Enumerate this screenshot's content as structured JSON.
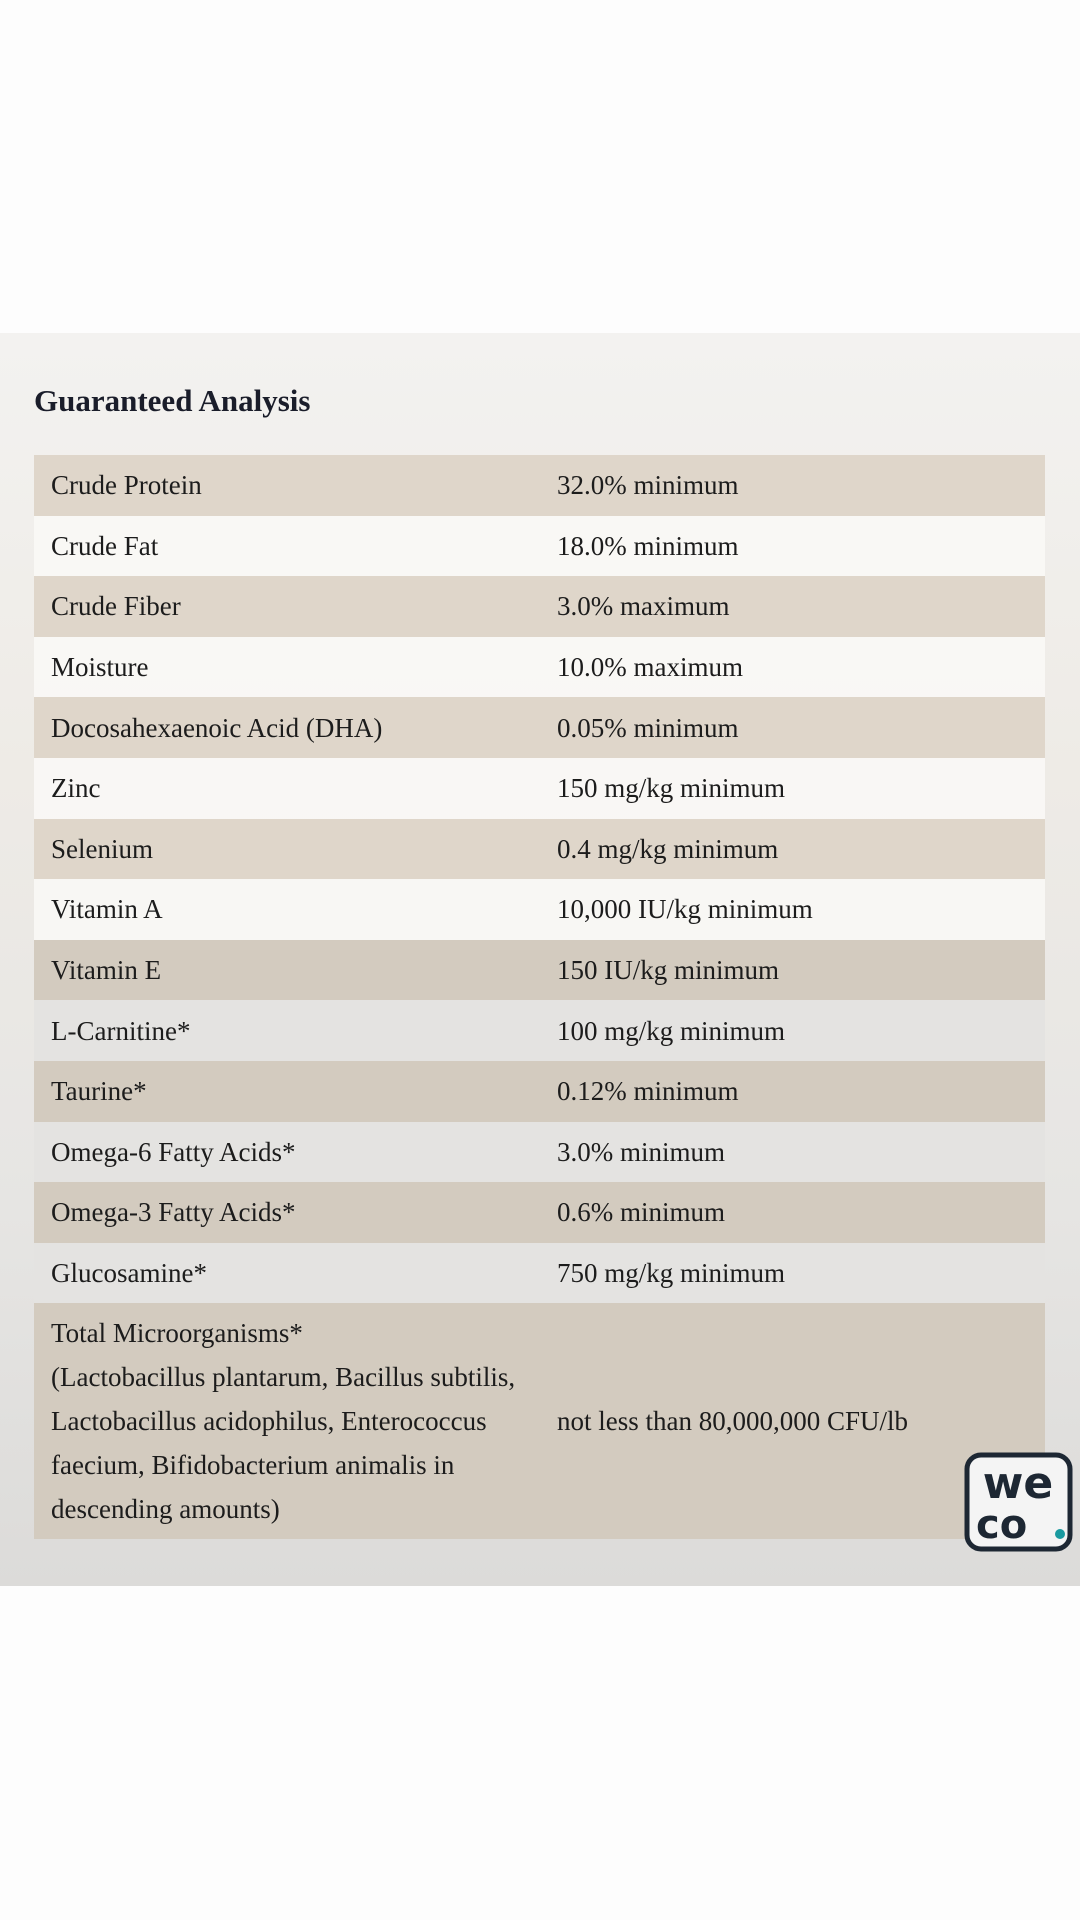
{
  "header": {
    "title": "Guaranteed Analysis"
  },
  "table": {
    "rows": [
      {
        "name": "Crude Protein",
        "value": "32.0% minimum"
      },
      {
        "name": "Crude Fat",
        "value": "18.0% minimum"
      },
      {
        "name": "Crude Fiber",
        "value": "3.0% maximum"
      },
      {
        "name": "Moisture",
        "value": "10.0% maximum"
      },
      {
        "name": "Docosahexaenoic Acid (DHA)",
        "value": "0.05% minimum"
      },
      {
        "name": "Zinc",
        "value": "150 mg/kg minimum"
      },
      {
        "name": "Selenium",
        "value": "0.4 mg/kg minimum"
      },
      {
        "name": "Vitamin A",
        "value": "10,000 IU/kg minimum"
      },
      {
        "name": "Vitamin E",
        "value": "150 IU/kg minimum"
      },
      {
        "name": "L-Carnitine*",
        "value": "100 mg/kg minimum"
      },
      {
        "name": "Taurine*",
        "value": "0.12% minimum"
      },
      {
        "name": "Omega-6 Fatty Acids*",
        "value": "3.0% minimum"
      },
      {
        "name": "Omega-3 Fatty Acids*",
        "value": "0.6% minimum"
      },
      {
        "name": "Glucosamine*",
        "value": "750 mg/kg minimum"
      },
      {
        "name": "Total Microorganisms*",
        "detail": "(Lactobacillus plantarum, Bacillus subtilis, Lactobacillus acidophilus, Enterococcus faecium, Bifidobacterium animalis in descending amounts)",
        "value": "not less than 80,000,000 CFU/lb"
      }
    ]
  },
  "logo": {
    "top": "we",
    "bottom": "co"
  }
}
